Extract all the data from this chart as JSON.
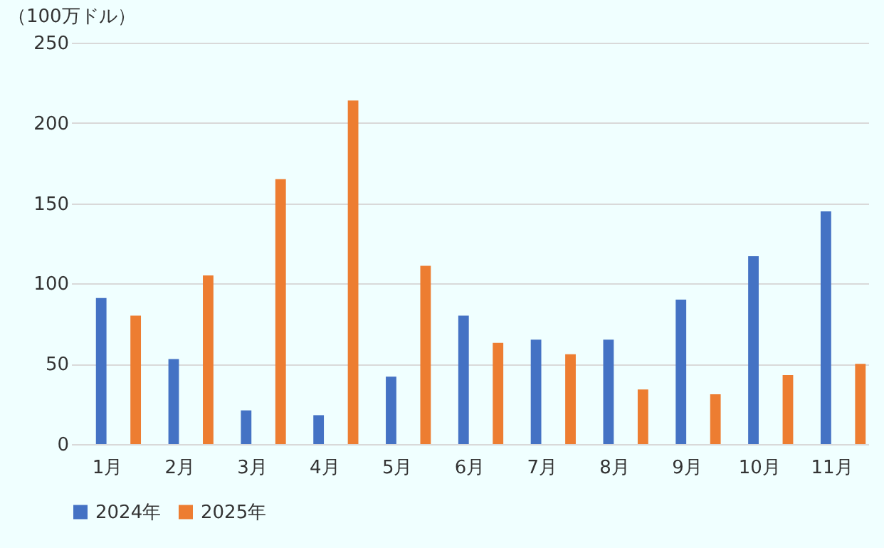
{
  "chart_data": {
    "type": "bar",
    "ylabel": "（100万ドル）",
    "categories": [
      "1月",
      "2月",
      "3月",
      "4月",
      "5月",
      "6月",
      "7月",
      "8月",
      "9月",
      "10月",
      "11月"
    ],
    "series": [
      {
        "name": "2024年",
        "color": "#4472c4",
        "values": [
          91,
          53,
          21,
          18,
          42,
          80,
          65,
          65,
          90,
          117,
          145
        ]
      },
      {
        "name": "2025年",
        "color": "#ed7d31",
        "values": [
          80,
          105,
          165,
          214,
          111,
          63,
          56,
          34,
          31,
          43,
          50
        ]
      }
    ],
    "ylim": [
      0,
      250
    ],
    "yticks": [
      0,
      50,
      100,
      150,
      200,
      250
    ],
    "grid": "y",
    "legend": "bottom"
  }
}
